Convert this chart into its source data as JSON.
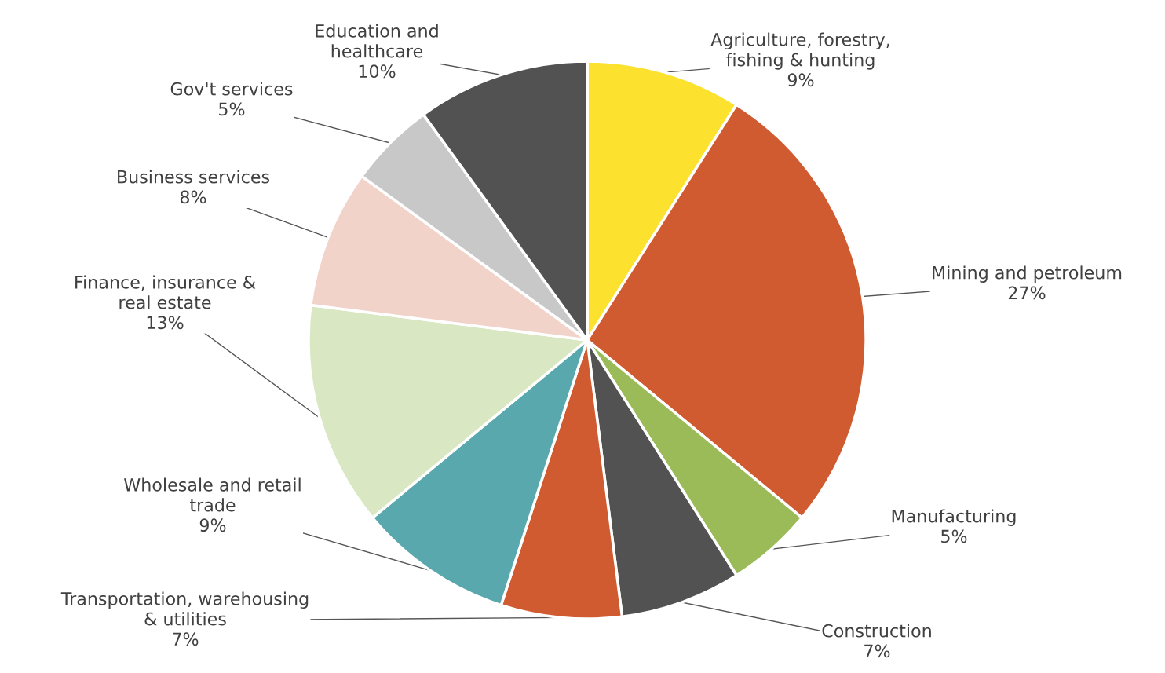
{
  "chart_data": {
    "type": "pie",
    "categories": [
      "Agriculture, forestry,\nfishing & hunting",
      "Mining and petroleum",
      "Manufacturing",
      "Construction",
      "Transportation, warehousing\n& utilities",
      "Wholesale and retail\ntrade",
      "Finance, insurance &\nreal estate",
      "Business services",
      "Gov't services",
      "Education and\nhealthcare"
    ],
    "values": [
      9,
      27,
      5,
      7,
      7,
      9,
      13,
      8,
      5,
      10
    ],
    "value_labels": [
      "9%",
      "27%",
      "5%",
      "7%",
      "7%",
      "9%",
      "13%",
      "8%",
      "5%",
      "10%"
    ],
    "colors": [
      "#fce22e",
      "#d05b30",
      "#9bbb59",
      "#525252",
      "#d05b30",
      "#59a8ad",
      "#d9e8c3",
      "#f2d3ca",
      "#c8c8c8",
      "#525252"
    ],
    "legend": false
  }
}
